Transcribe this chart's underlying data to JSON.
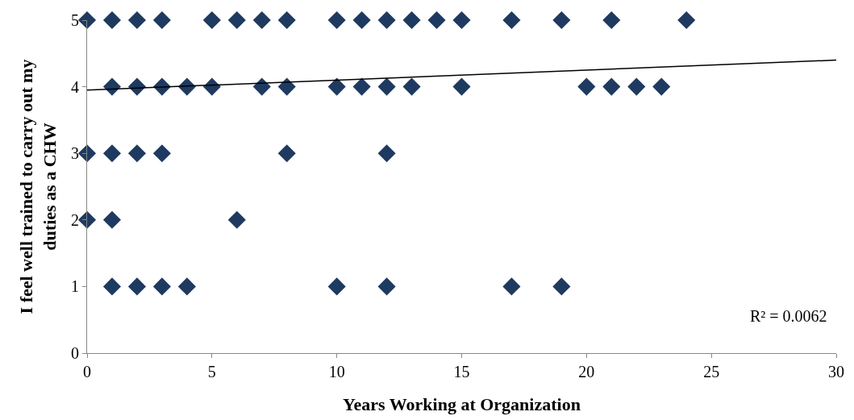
{
  "chart_data": {
    "type": "scatter",
    "xlabel": "Years Working at Organization",
    "ylabel": "I feel well trained to carry out my duties as a CHW",
    "series": [
      {
        "marker": "diamond",
        "color": "#1f3a60",
        "x": [
          0,
          1,
          2,
          3,
          5,
          6,
          7,
          8,
          10,
          11,
          12,
          13,
          14,
          15,
          17,
          19,
          21,
          24,
          1,
          2,
          3,
          4,
          5,
          7,
          8,
          10,
          11,
          12,
          13,
          15,
          20,
          21,
          22,
          23,
          0,
          1,
          2,
          3,
          8,
          12,
          0,
          1,
          6,
          1,
          2,
          3,
          4,
          10,
          12,
          17,
          19
        ],
        "values": [
          5,
          5,
          5,
          5,
          5,
          5,
          5,
          5,
          5,
          5,
          5,
          5,
          5,
          5,
          5,
          5,
          5,
          5,
          4,
          4,
          4,
          4,
          4,
          4,
          4,
          4,
          4,
          4,
          4,
          4,
          4,
          4,
          4,
          4,
          3,
          3,
          3,
          3,
          3,
          3,
          2,
          2,
          2,
          1,
          1,
          1,
          1,
          1,
          1,
          1,
          1
        ]
      },
      {
        "type": "line",
        "marker": "none",
        "color": "#000000",
        "x": [
          0,
          30
        ],
        "values": [
          3.95,
          4.4
        ]
      }
    ],
    "annotations": [
      "R² = 0.0062"
    ],
    "xlim": [
      0,
      30
    ],
    "xticks": [
      0,
      5,
      10,
      15,
      20,
      25,
      30
    ],
    "ylim": [
      0,
      5
    ],
    "yticks": [
      0,
      1,
      2,
      3,
      4,
      5
    ],
    "tick_labels": "xy"
  }
}
